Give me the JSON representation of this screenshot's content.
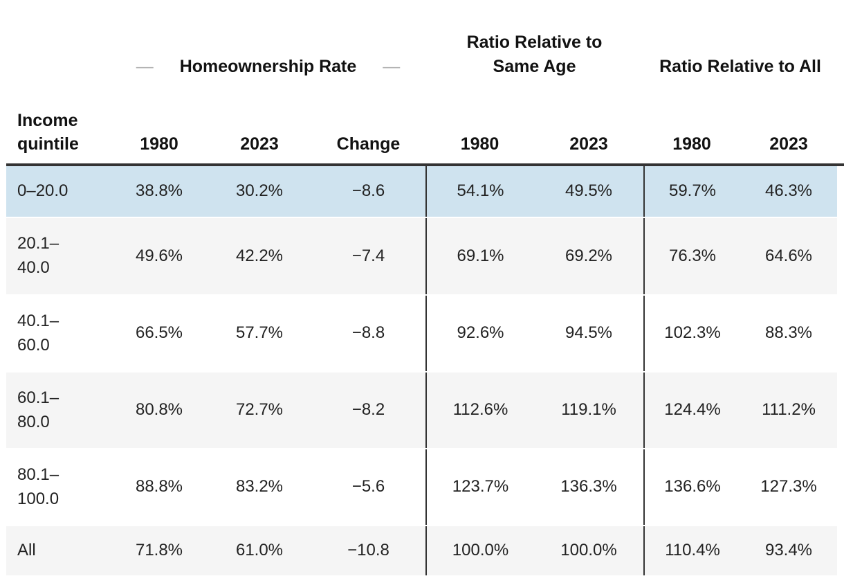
{
  "decor": {
    "dash": "—"
  },
  "group_headers": [
    {
      "label": "Homeownership Rate"
    },
    {
      "label": "Ratio Relative to Same Age"
    },
    {
      "label": "Ratio Relative to All"
    }
  ],
  "columns": [
    "Income quintile",
    "1980",
    "2023",
    "Change",
    "1980",
    "2023",
    "1980",
    "2023"
  ],
  "rows": [
    {
      "highlighted": true,
      "cells": [
        "0–20.0",
        "38.8%",
        "30.2%",
        "−8.6",
        "54.1%",
        "49.5%",
        "59.7%",
        "46.3%"
      ]
    },
    {
      "highlighted": false,
      "cells": [
        "20.1–\n40.0",
        "49.6%",
        "42.2%",
        "−7.4",
        "69.1%",
        "69.2%",
        "76.3%",
        "64.6%"
      ]
    },
    {
      "highlighted": false,
      "cells": [
        "40.1–\n60.0",
        "66.5%",
        "57.7%",
        "−8.8",
        "92.6%",
        "94.5%",
        "102.3%",
        "88.3%"
      ]
    },
    {
      "highlighted": false,
      "cells": [
        "60.1–\n80.0",
        "80.8%",
        "72.7%",
        "−8.2",
        "112.6%",
        "119.1%",
        "124.4%",
        "111.2%"
      ]
    },
    {
      "highlighted": false,
      "cells": [
        "80.1–\n100.0",
        "88.8%",
        "83.2%",
        "−5.6",
        "123.7%",
        "136.3%",
        "136.6%",
        "127.3%"
      ]
    },
    {
      "highlighted": false,
      "cells": [
        "All",
        "71.8%",
        "61.0%",
        "−10.8",
        "100.0%",
        "100.0%",
        "110.4%",
        "93.4%"
      ]
    }
  ],
  "colors": {
    "highlight_row": "#cfe3ef",
    "stripe_row": "#f5f5f5",
    "header_rule": "#333333",
    "group_divider": "#333333",
    "dash_decoration": "#b3b3b3",
    "text": "#1c1c1c"
  },
  "chart_data": {
    "type": "table",
    "title": "",
    "column_groups": [
      {
        "label": "Homeownership Rate",
        "columns": [
          "1980",
          "2023",
          "Change"
        ]
      },
      {
        "label": "Ratio Relative to Same Age",
        "columns": [
          "1980",
          "2023"
        ]
      },
      {
        "label": "Ratio Relative to All",
        "columns": [
          "1980",
          "2023"
        ]
      }
    ],
    "row_label_header": "Income quintile",
    "categories": [
      "0–20.0",
      "20.1–40.0",
      "40.1–60.0",
      "60.1–80.0",
      "80.1–100.0",
      "All"
    ],
    "series": [
      {
        "name": "Homeownership Rate 1980 (%)",
        "values": [
          38.8,
          49.6,
          66.5,
          80.8,
          88.8,
          71.8
        ]
      },
      {
        "name": "Homeownership Rate 2023 (%)",
        "values": [
          30.2,
          42.2,
          57.7,
          72.7,
          83.2,
          61.0
        ]
      },
      {
        "name": "Change (pp)",
        "values": [
          -8.6,
          -7.4,
          -8.8,
          -8.2,
          -5.6,
          -10.8
        ]
      },
      {
        "name": "Ratio Relative to Same Age 1980 (%)",
        "values": [
          54.1,
          69.1,
          92.6,
          112.6,
          123.7,
          100.0
        ]
      },
      {
        "name": "Ratio Relative to Same Age 2023 (%)",
        "values": [
          49.5,
          69.2,
          94.5,
          119.1,
          136.3,
          100.0
        ]
      },
      {
        "name": "Ratio Relative to All 1980 (%)",
        "values": [
          59.7,
          76.3,
          102.3,
          124.4,
          136.6,
          110.4
        ]
      },
      {
        "name": "Ratio Relative to All 2023 (%)",
        "values": [
          46.3,
          64.6,
          88.3,
          111.2,
          127.3,
          93.4
        ]
      }
    ],
    "highlighted_row": "0–20.0",
    "layout": {
      "grid": "off",
      "row_striping": true,
      "group_dividers": true
    }
  }
}
